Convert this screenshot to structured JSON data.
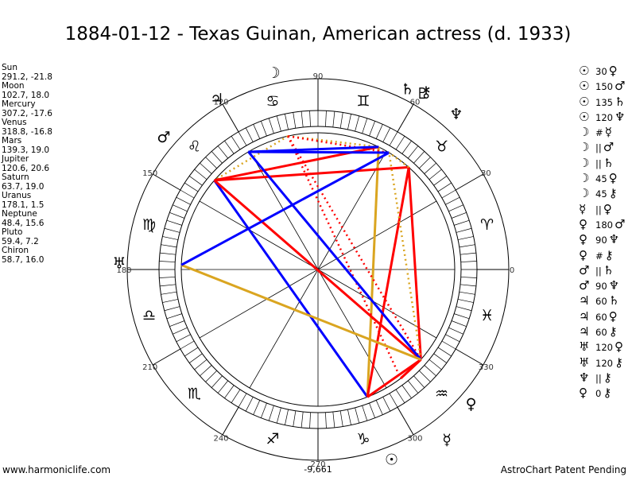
{
  "title": "1884-01-12 - Texas Guinan, American actress (d. 1933)",
  "positions": [
    {
      "planet": "Sun",
      "values": "291.2, -21.8"
    },
    {
      "planet": "Moon",
      "values": "102.7, 18.0"
    },
    {
      "planet": "Mercury",
      "values": "307.2, -17.6"
    },
    {
      "planet": "Venus",
      "values": "318.8, -16.8"
    },
    {
      "planet": "Mars",
      "values": "139.3, 19.0"
    },
    {
      "planet": "Jupiter",
      "values": "120.6, 20.6"
    },
    {
      "planet": "Saturn",
      "values": "63.7, 19.0"
    },
    {
      "planet": "Uranus",
      "values": "178.1, 1.5"
    },
    {
      "planet": "Neptune",
      "values": "48.4, 15.6"
    },
    {
      "planet": "Pluto",
      "values": "59.4, 7.2"
    },
    {
      "planet": "Chiron",
      "values": "58.7, 16.0"
    }
  ],
  "aspects": [
    {
      "p1": "☉",
      "orb": "30",
      "p2": "♀"
    },
    {
      "p1": "☉",
      "orb": "150",
      "p2": "♂"
    },
    {
      "p1": "☉",
      "orb": "135",
      "p2": "♄"
    },
    {
      "p1": "☉",
      "orb": "120",
      "p2": "♆"
    },
    {
      "p1": "☽",
      "orb": "#",
      "p2": "☿"
    },
    {
      "p1": "☽",
      "orb": "||",
      "p2": "♂"
    },
    {
      "p1": "☽",
      "orb": "||",
      "p2": "♄"
    },
    {
      "p1": "☽",
      "orb": "45",
      "p2": "♀"
    },
    {
      "p1": "☽",
      "orb": "45",
      "p2": "⚷"
    },
    {
      "p1": "☿",
      "orb": "||",
      "p2": "♀"
    },
    {
      "p1": "♀",
      "orb": "180",
      "p2": "♂"
    },
    {
      "p1": "♀",
      "orb": "90",
      "p2": "♆"
    },
    {
      "p1": "♀",
      "orb": "#",
      "p2": "⚷"
    },
    {
      "p1": "♂",
      "orb": "||",
      "p2": "♄"
    },
    {
      "p1": "♂",
      "orb": "90",
      "p2": "♆"
    },
    {
      "p1": "♃",
      "orb": "60",
      "p2": "♄"
    },
    {
      "p1": "♃",
      "orb": "60",
      "p2": "♀"
    },
    {
      "p1": "♃",
      "orb": "60",
      "p2": "⚷"
    },
    {
      "p1": "♅",
      "orb": "120",
      "p2": "♀"
    },
    {
      "p1": "♅",
      "orb": "120",
      "p2": "⚷"
    },
    {
      "p1": "♆",
      "orb": "||",
      "p2": "⚷"
    },
    {
      "p1": "♀",
      "orb": "0",
      "p2": "⚷"
    }
  ],
  "degree_labels": [
    "0",
    "30",
    "60",
    "90",
    "120",
    "150",
    "180",
    "210",
    "240",
    "270",
    "300",
    "330"
  ],
  "bottom_value": "-9,661",
  "footer_left": "www.harmoniclife.com",
  "footer_right": "AstroChart Patent Pending",
  "colors": {
    "red": "#ff0000",
    "blue": "#0000ff",
    "gold": "#daa520"
  },
  "icons": {
    "sun": "☉",
    "moon": "☽",
    "mercury": "☿",
    "venus": "♀",
    "mars": "♂",
    "jupiter": "♃",
    "saturn": "♄",
    "uranus": "♅",
    "neptune": "♆",
    "pluto": "♇",
    "chiron": "⚷",
    "aries": "♈",
    "taurus": "♉",
    "gemini": "♊",
    "cancer": "♋",
    "leo": "♌",
    "virgo": "♍",
    "libra": "♎",
    "scorpio": "♏",
    "sagittarius": "♐",
    "capricorn": "♑",
    "aquarius": "♒",
    "pisces": "♓"
  }
}
